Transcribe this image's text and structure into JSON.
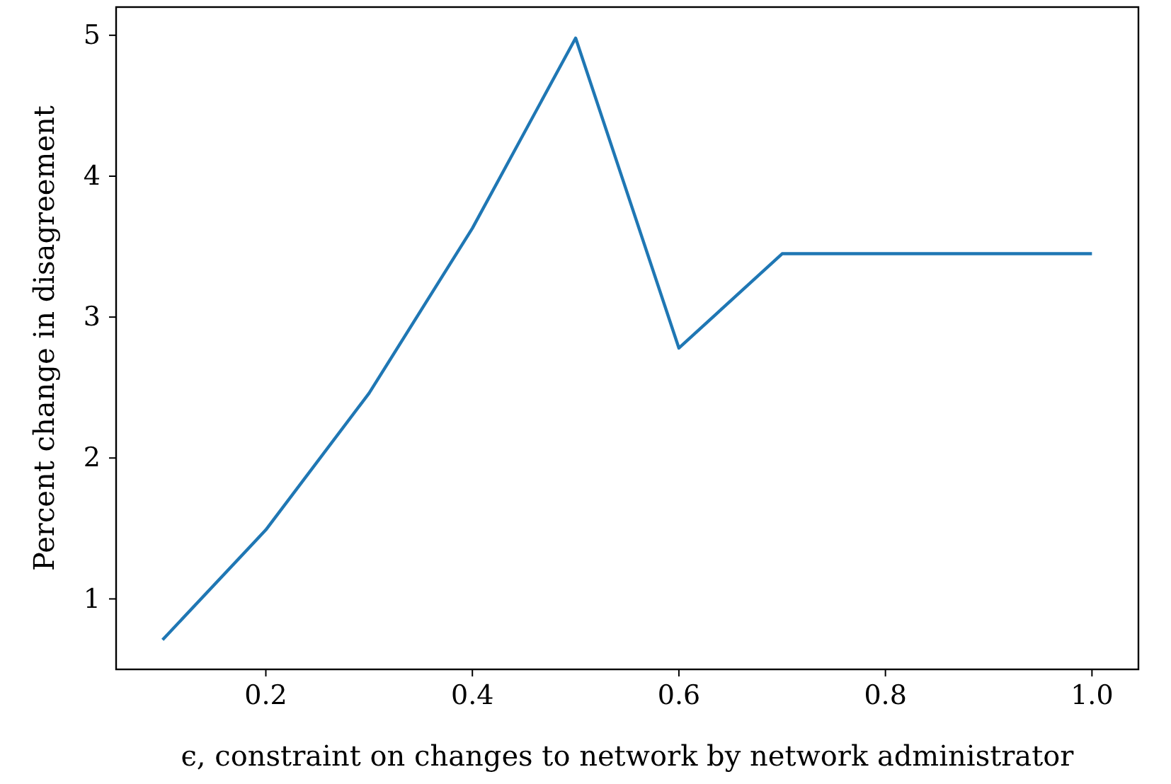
{
  "chart_data": {
    "type": "line",
    "xlabel": "ϵ, constraint on changes to network by network administrator",
    "ylabel": "Percent change in disagreement",
    "x": [
      0.1,
      0.2,
      0.3,
      0.4,
      0.5,
      0.6,
      0.7,
      0.8,
      0.9,
      1.0
    ],
    "series": [
      {
        "color": "#1f77b4",
        "values": [
          0.71,
          1.49,
          2.46,
          3.63,
          4.98,
          2.78,
          3.45,
          3.45,
          3.45,
          3.45
        ]
      }
    ],
    "xlim": [
      0.055,
      1.045
    ],
    "ylim": [
      0.5,
      5.2
    ],
    "xticks": [
      {
        "value": 0.2,
        "label": "0.2"
      },
      {
        "value": 0.4,
        "label": "0.4"
      },
      {
        "value": 0.6,
        "label": "0.6"
      },
      {
        "value": 0.8,
        "label": "0.8"
      },
      {
        "value": 1.0,
        "label": "1.0"
      }
    ],
    "yticks": [
      1,
      2,
      3,
      4,
      5
    ],
    "grid": false,
    "marker": "none",
    "line_style": "solid"
  }
}
